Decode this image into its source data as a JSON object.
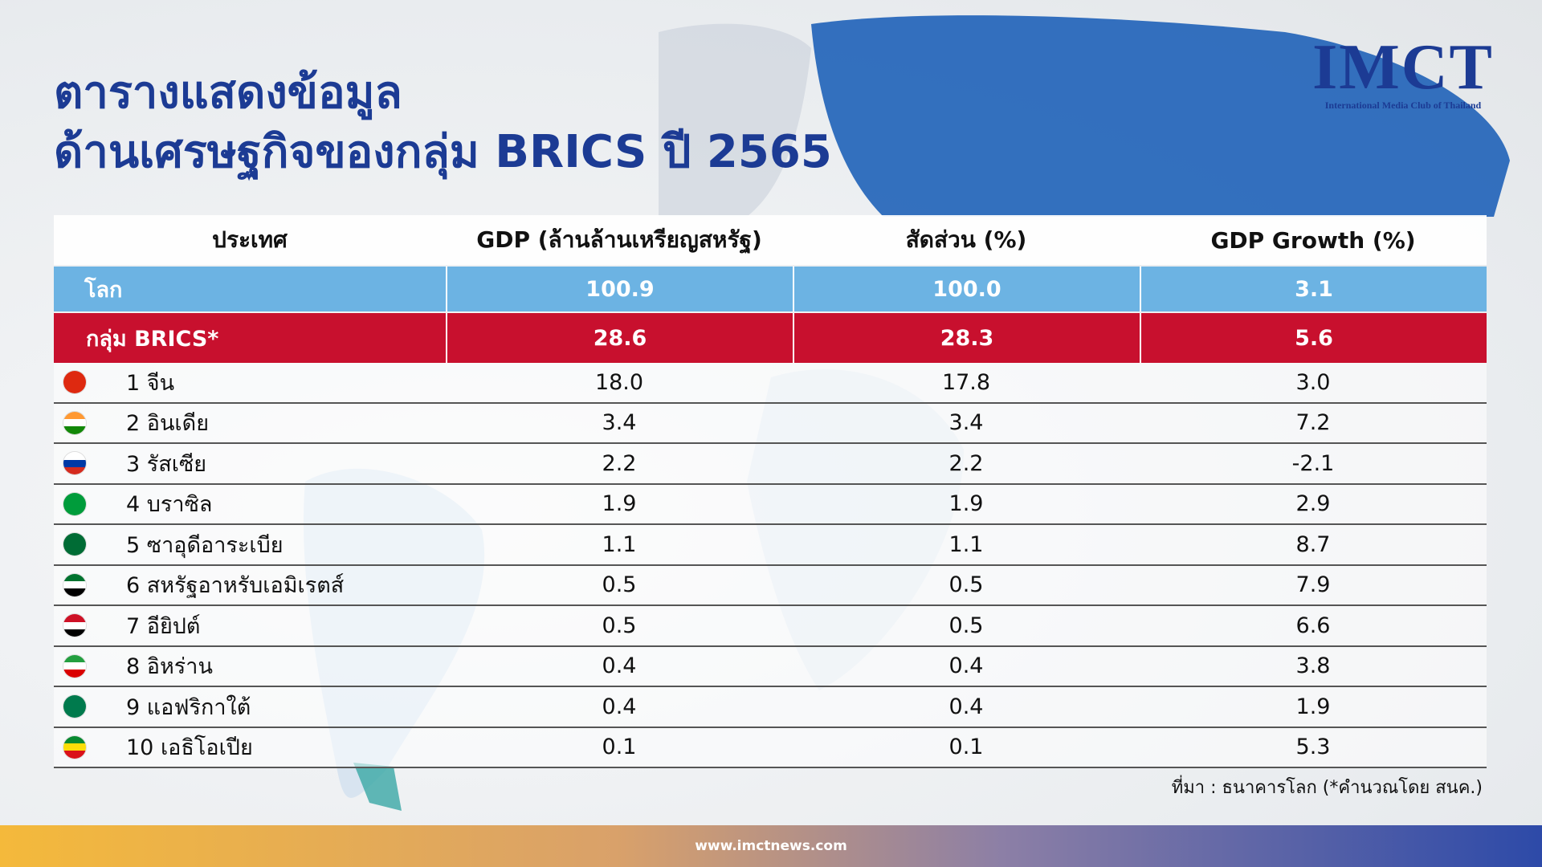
{
  "header": {
    "title_line1": "ตารางแสดงข้อมูล",
    "title_line2": "ด้านเศรษฐกิจของกลุ่ม BRICS ปี 2565"
  },
  "logo": {
    "name": "IMCT",
    "subtitle": "International Media Club of Thailand"
  },
  "table": {
    "columns": [
      "ประเทศ",
      "GDP (ล้านล้านเหรียญสหรัฐ)",
      "สัดส่วน (%)",
      "GDP Growth (%)"
    ],
    "rows": [
      [
        "โลก",
        "100.9",
        "100.0",
        "3.1"
      ],
      [
        "กลุ่ม BRICS*",
        "28.6",
        "28.3",
        "5.6"
      ],
      [
        "1 จีน",
        "18.0",
        "17.8",
        "3.0"
      ],
      [
        "2 อินเดีย",
        "3.4",
        "3.4",
        "7.2"
      ],
      [
        "3 รัสเซีย",
        "2.2",
        "2.2",
        "-2.1"
      ],
      [
        "4 บราซิล",
        "1.9",
        "1.9",
        "2.9"
      ],
      [
        "5 ซาอุดีอาระเบีย",
        "1.1",
        "1.1",
        "8.7"
      ],
      [
        "6 สหรัฐอาหรับเอมิเรตส์",
        "0.5",
        "0.5",
        "7.9"
      ],
      [
        "7 อียิปต์",
        "0.5",
        "0.5",
        "6.6"
      ],
      [
        "8 อิหร่าน",
        "0.4",
        "0.4",
        "3.8"
      ],
      [
        "9 แอฟริกาใต้",
        "0.4",
        "0.4",
        "1.9"
      ],
      [
        "10 เอธิโอเปีย",
        "0.1",
        "0.1",
        "5.3"
      ]
    ]
  },
  "source": "ที่มา : ธนาคารโลก (*คำนวณโดย สนค.)",
  "footer": "www.imctnews.com"
}
